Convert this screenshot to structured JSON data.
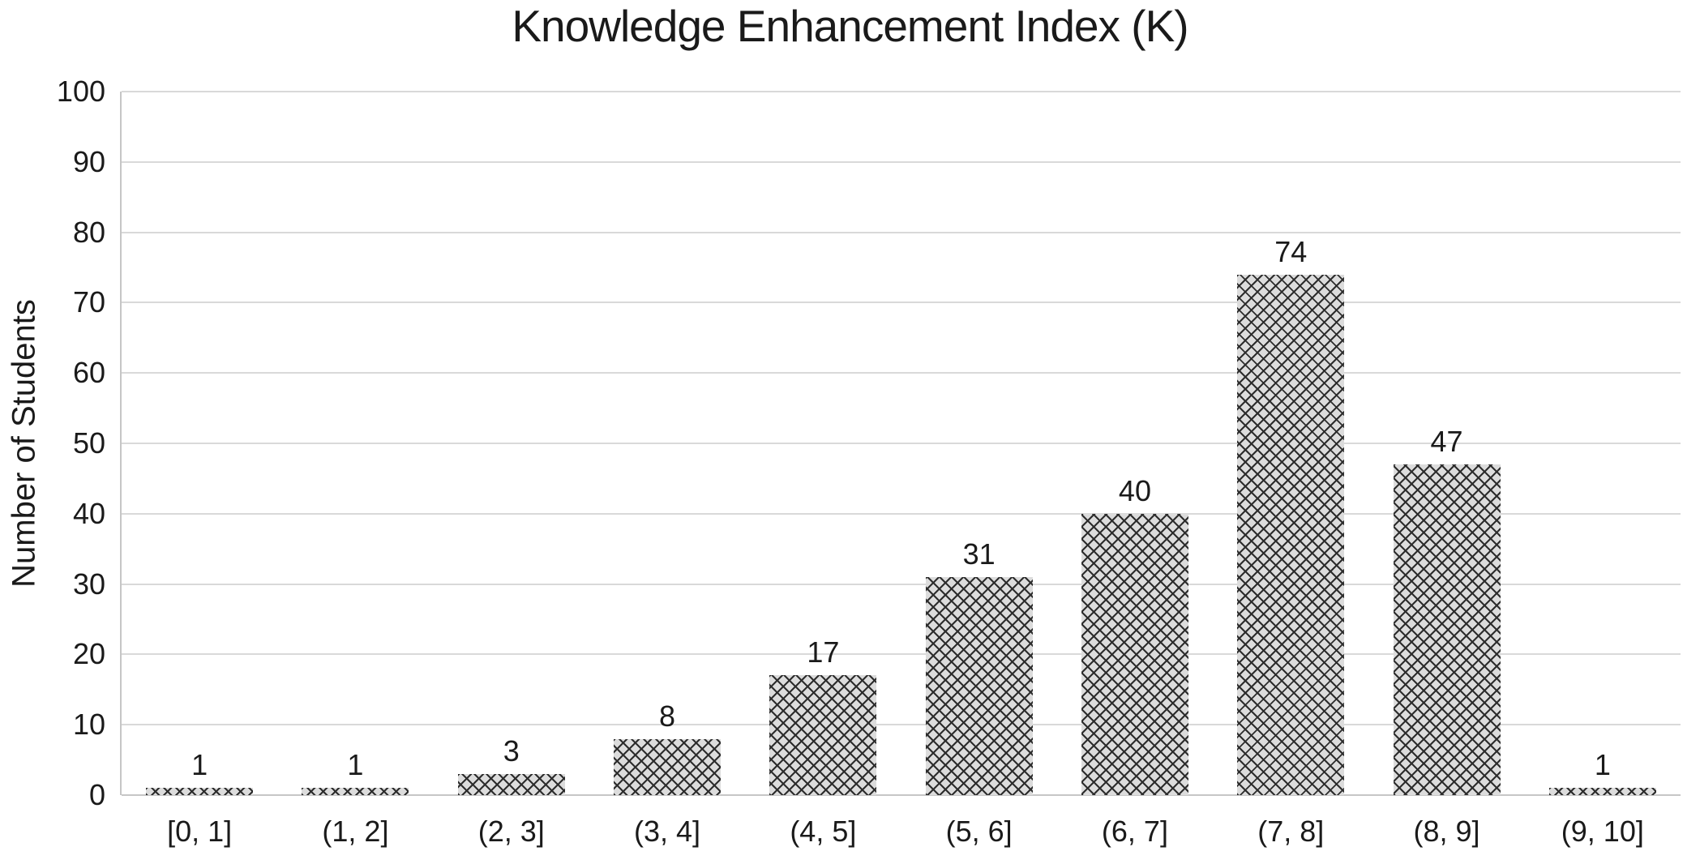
{
  "chart_data": {
    "type": "bar",
    "title": "Knowledge Enhancement Index (K)",
    "ylabel": "Number of Students",
    "xlabel": "",
    "categories": [
      "[0, 1]",
      "(1, 2]",
      "(2, 3]",
      "(3, 4]",
      "(4, 5]",
      "(5, 6]",
      "(6, 7]",
      "(7, 8]",
      "(8, 9]",
      "(9, 10]"
    ],
    "values": [
      1,
      1,
      3,
      8,
      17,
      31,
      40,
      74,
      47,
      1
    ],
    "yticks": [
      0,
      10,
      20,
      30,
      40,
      50,
      60,
      70,
      80,
      90,
      100
    ],
    "ylim": [
      0,
      100
    ],
    "grid": "horizontal-major",
    "legend": "none",
    "data_labels": "above-bars",
    "bar_pattern": "diagonal-crosshatch",
    "colors": {
      "background": "#ffffff",
      "text": "#1a1a1a",
      "bar_fill": "#dcdcdc",
      "bar_hatch": "#2d2d2d",
      "gridline": "#d9d9d9",
      "axis_line": "#c6c6c6"
    }
  }
}
